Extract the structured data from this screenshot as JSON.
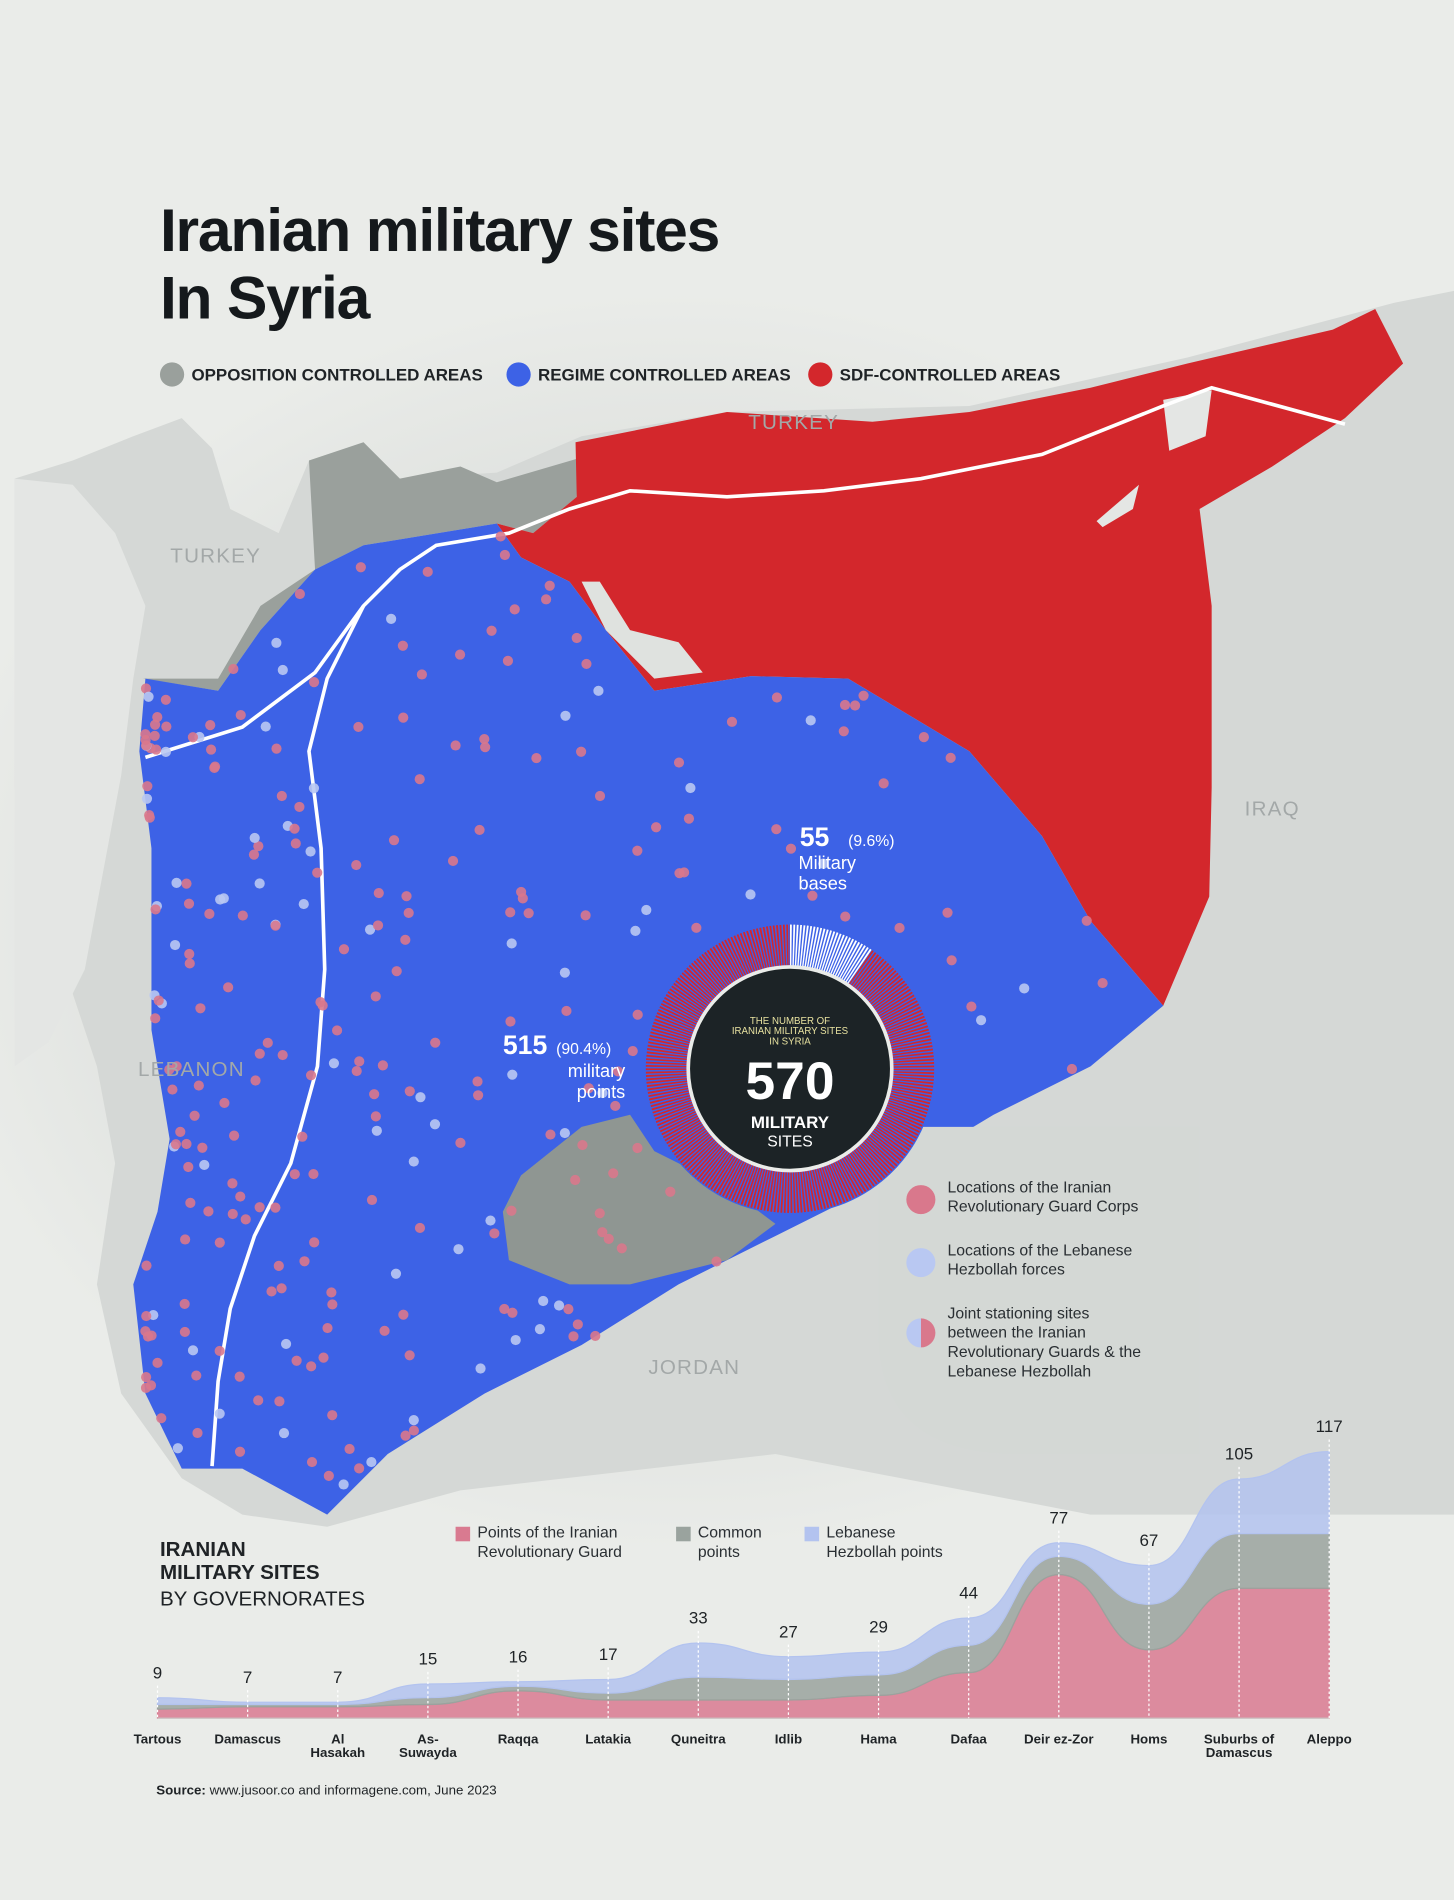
{
  "header": {
    "title": "Iranian military sites\nIn Syria"
  },
  "map_legend": [
    {
      "label": "OPPOSITION CONTROLLED AREAS",
      "color": "#9aa09c"
    },
    {
      "label": "REGIME CONTROLLED AREAS",
      "color": "#3d62e6"
    },
    {
      "label": "SDF-CONTROLLED AREAS",
      "color": "#d3272c"
    }
  ],
  "country_labels": [
    "TURKEY",
    "TURKEY",
    "IRAQ",
    "LEBANON",
    "JORDAN"
  ],
  "point_legend": [
    {
      "label": "Locations of the Iranian\nRevolutionary Guard Corps",
      "color": "#d9788c"
    },
    {
      "label": "Locations of the Lebanese\nHezbollah forces",
      "color": "#b9c8f2"
    },
    {
      "label": "Joint stationing sites\nbetween the Iranian\nRevolutionary Guards & the\nLebanese Hezbollah",
      "color": "#d9788c"
    }
  ],
  "chart_data": [
    {
      "type": "donut",
      "title": "THE NUMBER OF\nIRANIAN MILITARY SITES\nIN SYRIA",
      "total": 570,
      "total_label": "MILITARY",
      "total_sublabel": "SITES",
      "categories": [
        "Military\nbases",
        "military\npoints"
      ],
      "values": [
        55,
        515
      ],
      "share_labels": [
        "(9.6%)",
        "(90.4%)"
      ],
      "colors": [
        "#ffffff",
        "#d3272c"
      ]
    },
    {
      "type": "stacked-area",
      "title": "IRANIAN\nMILITARY SITES",
      "subtitle": "BY GOVERNORATES",
      "categories": [
        "Tartous",
        "Damascus",
        "Al\nHasakah",
        "As-\nSuwayda",
        "Raqqa",
        "Latakia",
        "Quneitra",
        "Idlib",
        "Hama",
        "Dafaa",
        "Deir ez-Zor",
        "Homs",
        "Suburbs of\nDamascus",
        "Aleppo"
      ],
      "series": [
        {
          "name": "Points of the Iranian\nRevolutionary Guard",
          "color": "#d97a90",
          "values": [
            4,
            5,
            5,
            6,
            12,
            8,
            8,
            8,
            10,
            20,
            63,
            30,
            57,
            57
          ]
        },
        {
          "name": "Common\npoints",
          "color": "#9aa39e",
          "values": [
            2,
            1,
            1,
            3,
            2,
            3,
            10,
            9,
            9,
            12,
            8,
            20,
            24,
            24
          ]
        },
        {
          "name": "Lebanese\nHezbollah points",
          "color": "#b3c3ef",
          "values": [
            3,
            1,
            1,
            6,
            2,
            6,
            15,
            10,
            10,
            12,
            6,
            17,
            24,
            36
          ]
        }
      ],
      "totals": [
        9,
        7,
        7,
        15,
        16,
        17,
        33,
        27,
        29,
        44,
        77,
        67,
        105,
        117
      ]
    }
  ],
  "source": {
    "label": "Source:",
    "text": "www.jusoor.co and informagene.com, June 2023"
  }
}
